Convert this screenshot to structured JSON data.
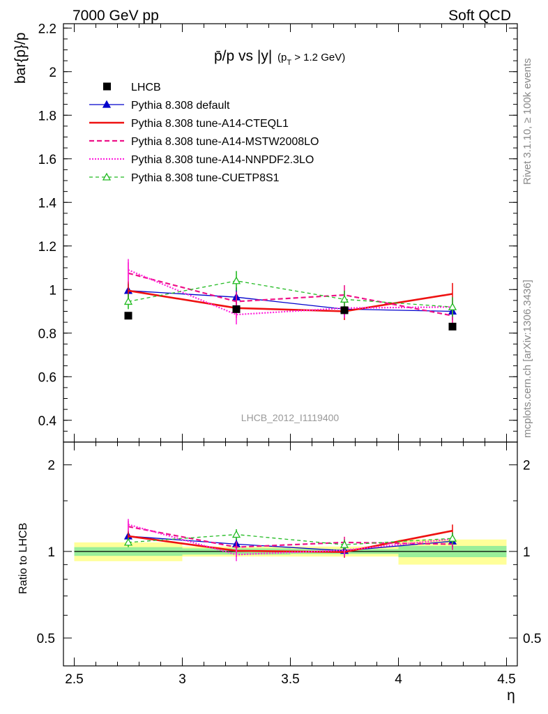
{
  "header": {
    "left": "7000 GeV pp",
    "right": "Soft QCD"
  },
  "side": {
    "rivet": "Rivet 3.1.10, ≥ 100k events",
    "mcplots": "mcplots.cern.ch [arXiv:1306.3436]"
  },
  "colors": {
    "lhcb": "#000000",
    "default": "#0000cc",
    "cteql1": "#ee1111",
    "mstw": "#ee1188",
    "nnpdf": "#ff22dd",
    "cuetp": "#22bb22",
    "band_inner": "#99ee99",
    "band_outer": "#ffff99"
  },
  "chart_data": {
    "type": "line",
    "title": "p̄/p vs |y|",
    "title_sub": "(p",
    "title_sub2": "T",
    "title_sub3": " > 1.2 GeV)",
    "watermark": "LHCB_2012_I1119400",
    "xlabel": "η",
    "ylabel": "bar{p}/p",
    "ratio_ylabel": "Ratio to LHCB",
    "xlim": [
      2.45,
      4.55
    ],
    "ylim": [
      0.3,
      2.22
    ],
    "ratio_ylim": [
      0.4,
      2.4
    ],
    "ratio_scale": "log",
    "xticks": [
      "2.5",
      "3",
      "3.5",
      "4",
      "4.5"
    ],
    "yticks": [
      "0.4",
      "0.6",
      "0.8",
      "1",
      "1.2",
      "1.4",
      "1.6",
      "1.8",
      "2",
      "2.2"
    ],
    "ratio_yticks": [
      "0.5",
      "1",
      "2"
    ],
    "legend_position": "top-left",
    "reference": {
      "name": "LHCB",
      "bins": [
        [
          2.5,
          3.0
        ],
        [
          3.0,
          3.5
        ],
        [
          3.5,
          4.0
        ],
        [
          4.0,
          4.5
        ]
      ],
      "x": [
        2.75,
        3.25,
        3.75,
        4.25
      ],
      "y": [
        0.88,
        0.91,
        0.905,
        0.83
      ],
      "band_inner": [
        [
          0.965,
          1.035
        ],
        [
          0.975,
          1.025
        ],
        [
          0.98,
          1.02
        ],
        [
          0.955,
          1.045
        ]
      ],
      "band_outer": [
        [
          0.925,
          1.075
        ],
        [
          0.96,
          1.04
        ],
        [
          0.96,
          1.04
        ],
        [
          0.9,
          1.1
        ]
      ]
    },
    "series": [
      {
        "name": "Pythia 8.308 default",
        "key": "default",
        "style": "solid",
        "marker": "triangle-filled",
        "x": [
          2.75,
          3.25,
          3.75,
          4.25
        ],
        "y": [
          0.995,
          0.965,
          0.91,
          0.9
        ],
        "err": [
          0.035,
          0.045,
          0.04,
          0.04
        ],
        "ratio": [
          1.13,
          1.06,
          1.006,
          1.085
        ]
      },
      {
        "name": "Pythia 8.308 tune-A14-CTEQL1",
        "key": "cteql1",
        "style": "solid-thick",
        "marker": "none",
        "x": [
          2.75,
          3.25,
          3.75,
          4.25
        ],
        "y": [
          0.995,
          0.915,
          0.9,
          0.98
        ],
        "err": [
          0.04,
          0.045,
          0.04,
          0.05
        ],
        "ratio": [
          1.13,
          1.005,
          0.995,
          1.18
        ]
      },
      {
        "name": "Pythia 8.308 tune-A14-MSTW2008LO",
        "key": "mstw",
        "style": "dashed",
        "marker": "none",
        "x": [
          2.75,
          3.25,
          3.75,
          4.25
        ],
        "y": [
          1.075,
          0.945,
          0.975,
          0.88
        ],
        "err": [
          0.05,
          0.045,
          0.045,
          0.04
        ],
        "ratio": [
          1.22,
          1.035,
          1.075,
          1.06
        ]
      },
      {
        "name": "Pythia 8.308 tune-A14-NNPDF2.3LO",
        "key": "nnpdf",
        "style": "dotted",
        "marker": "none",
        "x": [
          2.75,
          3.25,
          3.75,
          4.25
        ],
        "y": [
          1.09,
          0.885,
          0.915,
          0.92
        ],
        "err": [
          0.05,
          0.045,
          0.045,
          0.045
        ],
        "ratio": [
          1.24,
          0.975,
          1.01,
          1.105
        ]
      },
      {
        "name": "Pythia 8.308 tune-CUETP8S1",
        "key": "cuetp",
        "style": "dashed-thin",
        "marker": "triangle-open",
        "x": [
          2.75,
          3.25,
          3.75,
          4.25
        ],
        "y": [
          0.945,
          1.04,
          0.955,
          0.92
        ],
        "err": [
          0.035,
          0.045,
          0.04,
          0.045
        ],
        "ratio": [
          1.075,
          1.145,
          1.055,
          1.11
        ]
      }
    ]
  }
}
